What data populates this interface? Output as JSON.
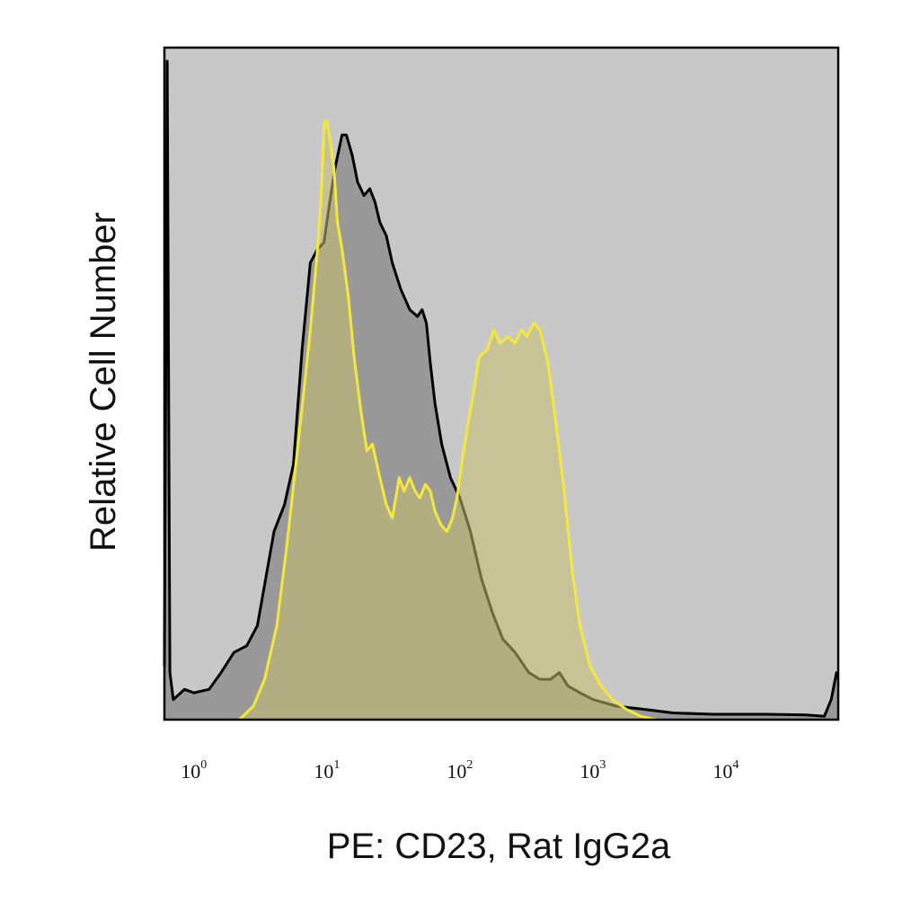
{
  "chart_data": {
    "type": "area",
    "xlabel": "PE: CD23, Rat IgG2a",
    "ylabel": "Relative Cell Number",
    "x_scale": "log",
    "xlim": [
      0.6,
      70000
    ],
    "ylim": [
      0,
      100
    ],
    "x_ticks": [
      {
        "value": 1,
        "base": "10",
        "exp": "0"
      },
      {
        "value": 10,
        "base": "10",
        "exp": "1"
      },
      {
        "value": 100,
        "base": "10",
        "exp": "2"
      },
      {
        "value": 1000,
        "base": "10",
        "exp": "3"
      },
      {
        "value": 10000,
        "base": "10",
        "exp": "4"
      }
    ],
    "plot_background": "#c8c8c8",
    "grid": false,
    "legend": "none",
    "series": [
      {
        "fill": "#999999",
        "stroke": "#000000",
        "points": [
          [
            0.6,
            8
          ],
          [
            0.63,
            98
          ],
          [
            0.66,
            7
          ],
          [
            0.7,
            3
          ],
          [
            0.85,
            4.5
          ],
          [
            1.0,
            4
          ],
          [
            1.3,
            4.5
          ],
          [
            1.6,
            7
          ],
          [
            2.0,
            10
          ],
          [
            2.5,
            11
          ],
          [
            3.0,
            14
          ],
          [
            4.0,
            28
          ],
          [
            4.8,
            32
          ],
          [
            5.6,
            38
          ],
          [
            6.5,
            55
          ],
          [
            7.5,
            68
          ],
          [
            8.5,
            70
          ],
          [
            9.5,
            71
          ],
          [
            10.5,
            77
          ],
          [
            11.5,
            82
          ],
          [
            13.0,
            87
          ],
          [
            14.0,
            87
          ],
          [
            15.5,
            84
          ],
          [
            17.0,
            80
          ],
          [
            19.0,
            78
          ],
          [
            21.0,
            79
          ],
          [
            23.0,
            77
          ],
          [
            25.0,
            74
          ],
          [
            28.0,
            72
          ],
          [
            31.0,
            68
          ],
          [
            36.0,
            64
          ],
          [
            42.0,
            61
          ],
          [
            48.0,
            60
          ],
          [
            52.0,
            61
          ],
          [
            56.0,
            59
          ],
          [
            60.0,
            53
          ],
          [
            65.0,
            47
          ],
          [
            73.0,
            41
          ],
          [
            85.0,
            36
          ],
          [
            100.0,
            33
          ],
          [
            120.0,
            28
          ],
          [
            145.0,
            21
          ],
          [
            175.0,
            16
          ],
          [
            210.0,
            12
          ],
          [
            260.0,
            10
          ],
          [
            330.0,
            7
          ],
          [
            400.0,
            6
          ],
          [
            480.0,
            6
          ],
          [
            560.0,
            7
          ],
          [
            650.0,
            5
          ],
          [
            800.0,
            4
          ],
          [
            1000.0,
            3
          ],
          [
            1500.0,
            2
          ],
          [
            2500.0,
            1.5
          ],
          [
            4000.0,
            1
          ],
          [
            8000.0,
            0.8
          ],
          [
            20000.0,
            0.8
          ],
          [
            40000.0,
            0.7
          ],
          [
            55000.0,
            0.5
          ],
          [
            62000.0,
            3
          ],
          [
            68000.0,
            7
          ],
          [
            70000.0,
            6
          ]
        ]
      },
      {
        "fill": "#c9c06e",
        "fill_opacity": 0.55,
        "stroke": "#f4e840",
        "points": [
          [
            2.2,
            0
          ],
          [
            2.8,
            2
          ],
          [
            3.4,
            6
          ],
          [
            4.2,
            14
          ],
          [
            5.0,
            26
          ],
          [
            6.0,
            40
          ],
          [
            6.8,
            50
          ],
          [
            7.5,
            58
          ],
          [
            8.5,
            70
          ],
          [
            9.0,
            77
          ],
          [
            9.6,
            89
          ],
          [
            10.0,
            89
          ],
          [
            10.6,
            86
          ],
          [
            11.3,
            82
          ],
          [
            12.0,
            74
          ],
          [
            13.0,
            70
          ],
          [
            14.5,
            63
          ],
          [
            16.0,
            54
          ],
          [
            18.0,
            46
          ],
          [
            20.0,
            40
          ],
          [
            22.0,
            41
          ],
          [
            25.0,
            36
          ],
          [
            28.0,
            32
          ],
          [
            31.0,
            30
          ],
          [
            35.0,
            36
          ],
          [
            38.0,
            34
          ],
          [
            42.0,
            36
          ],
          [
            46.0,
            34
          ],
          [
            50.0,
            33
          ],
          [
            55.0,
            35
          ],
          [
            60.0,
            34
          ],
          [
            65.0,
            31
          ],
          [
            72.0,
            29
          ],
          [
            80.0,
            28
          ],
          [
            88.0,
            30
          ],
          [
            95.0,
            33
          ],
          [
            105.0,
            39
          ],
          [
            115.0,
            44
          ],
          [
            125.0,
            48
          ],
          [
            140.0,
            54
          ],
          [
            160.0,
            55
          ],
          [
            180.0,
            58
          ],
          [
            200.0,
            56
          ],
          [
            230.0,
            57
          ],
          [
            260.0,
            56
          ],
          [
            290.0,
            58
          ],
          [
            320.0,
            57
          ],
          [
            360.0,
            59
          ],
          [
            400.0,
            58
          ],
          [
            460.0,
            53
          ],
          [
            520.0,
            45
          ],
          [
            600.0,
            35
          ],
          [
            700.0,
            22
          ],
          [
            800.0,
            14
          ],
          [
            950.0,
            8
          ],
          [
            1150.0,
            5
          ],
          [
            1400.0,
            3
          ],
          [
            1800.0,
            1.5
          ],
          [
            2300.0,
            0.5
          ],
          [
            3000.0,
            0
          ]
        ]
      }
    ]
  }
}
